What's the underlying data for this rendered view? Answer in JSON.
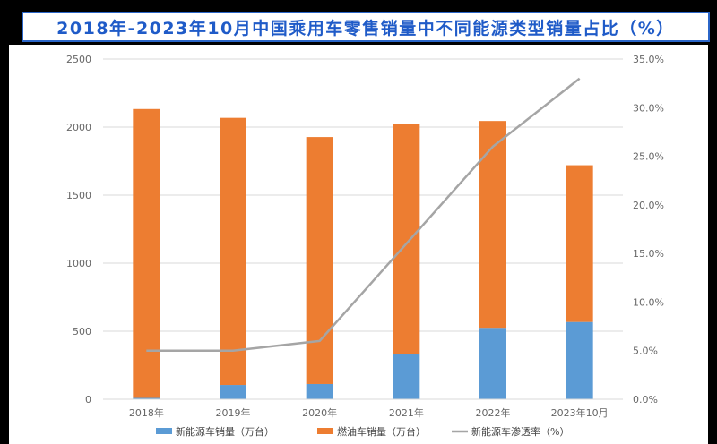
{
  "title": "2018年-2023年10月中国乘用车零售销量中不同能源类型销量占比（%）",
  "colors": {
    "nev_bar": "#5b9bd5",
    "fuel_bar": "#ed7d31",
    "line": "#a5a5a5",
    "grid": "#d9d9d9",
    "title_text": "#1f5bc8",
    "title_border": "#2b66c8"
  },
  "chart_data": {
    "type": "bar",
    "stacked": true,
    "categories": [
      "2018年",
      "2019年",
      "2020年",
      "2021年",
      "2022年",
      "2023年10月"
    ],
    "series": [
      {
        "name": "新能源车销量（万台）",
        "kind": "bar",
        "axis": "left",
        "color": "#5b9bd5",
        "values": [
          10,
          105,
          112,
          330,
          525,
          568
        ]
      },
      {
        "name": "燃油车销量（万台）",
        "kind": "bar",
        "axis": "left",
        "color": "#ed7d31",
        "values": [
          2123,
          1963,
          1815,
          1690,
          1520,
          1152
        ]
      },
      {
        "name": "新能源车渗透率（%）",
        "kind": "line",
        "axis": "right",
        "color": "#a5a5a5",
        "values": [
          5.0,
          5.0,
          6.0,
          16.0,
          26.0,
          33.0
        ]
      }
    ],
    "y_left": {
      "ylim": [
        0,
        2500
      ],
      "ticks": [
        "0",
        "500",
        "1000",
        "1500",
        "2000",
        "2500"
      ]
    },
    "y_right": {
      "ylim": [
        0,
        35
      ],
      "ticks": [
        "0.0%",
        "5.0%",
        "10.0%",
        "15.0%",
        "20.0%",
        "25.0%",
        "30.0%",
        "35.0%"
      ]
    },
    "grid": true,
    "legend_position": "bottom"
  }
}
